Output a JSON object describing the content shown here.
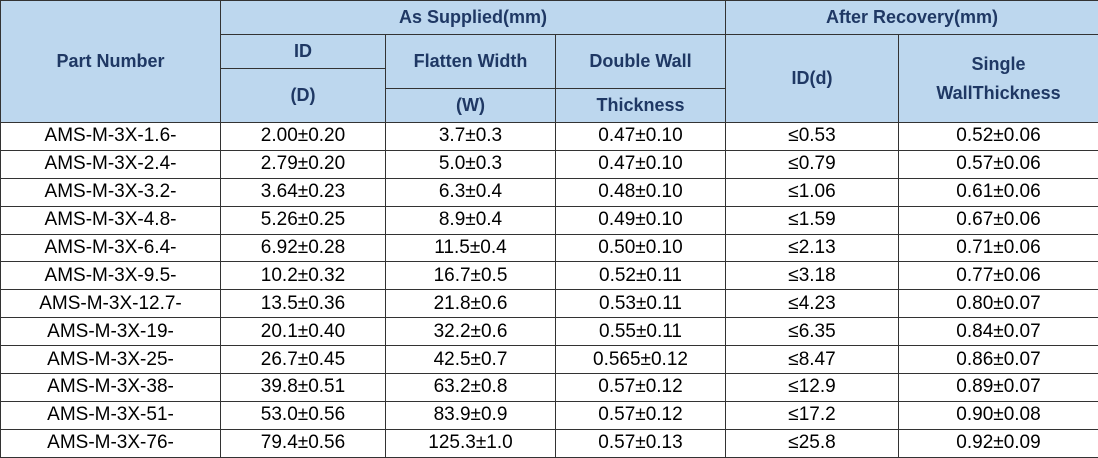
{
  "table": {
    "header": {
      "part_number": "Part Number",
      "as_supplied": "As Supplied(mm)",
      "after_recovery": "After Recovery(mm)",
      "id": "ID",
      "id_d": "(D)",
      "flatten_width": "Flatten Width",
      "flatten_w": "(W)",
      "double_wall": "Double Wall",
      "thickness": "Thickness",
      "recovered_id": "ID(d)",
      "single": "Single",
      "wall_thickness": "WallThickness"
    },
    "rows": [
      [
        "AMS-M-3X-1.6-",
        "2.00±0.20",
        "3.7±0.3",
        "0.47±0.10",
        "≤0.53",
        "0.52±0.06"
      ],
      [
        "AMS-M-3X-2.4-",
        "2.79±0.20",
        "5.0±0.3",
        "0.47±0.10",
        "≤0.79",
        "0.57±0.06"
      ],
      [
        "AMS-M-3X-3.2-",
        "3.64±0.23",
        "6.3±0.4",
        "0.48±0.10",
        "≤1.06",
        "0.61±0.06"
      ],
      [
        "AMS-M-3X-4.8-",
        "5.26±0.25",
        "8.9±0.4",
        "0.49±0.10",
        "≤1.59",
        "0.67±0.06"
      ],
      [
        "AMS-M-3X-6.4-",
        "6.92±0.28",
        "11.5±0.4",
        "0.50±0.10",
        "≤2.13",
        "0.71±0.06"
      ],
      [
        "AMS-M-3X-9.5-",
        "10.2±0.32",
        "16.7±0.5",
        "0.52±0.11",
        "≤3.18",
        "0.77±0.06"
      ],
      [
        "AMS-M-3X-12.7-",
        "13.5±0.36",
        "21.8±0.6",
        "0.53±0.11",
        "≤4.23",
        "0.80±0.07"
      ],
      [
        "AMS-M-3X-19-",
        "20.1±0.40",
        "32.2±0.6",
        "0.55±0.11",
        "≤6.35",
        "0.84±0.07"
      ],
      [
        "AMS-M-3X-25-",
        "26.7±0.45",
        "42.5±0.7",
        "0.565±0.12",
        "≤8.47",
        "0.86±0.07"
      ],
      [
        "AMS-M-3X-38-",
        "39.8±0.51",
        "63.2±0.8",
        "0.57±0.12",
        "≤12.9",
        "0.89±0.07"
      ],
      [
        "AMS-M-3X-51-",
        "53.0±0.56",
        "83.9±0.9",
        "0.57±0.12",
        "≤17.2",
        "0.90±0.08"
      ],
      [
        "AMS-M-3X-76-",
        "79.4±0.56",
        "125.3±1.0",
        "0.57±0.13",
        "≤25.8",
        "0.92±0.09"
      ]
    ]
  }
}
